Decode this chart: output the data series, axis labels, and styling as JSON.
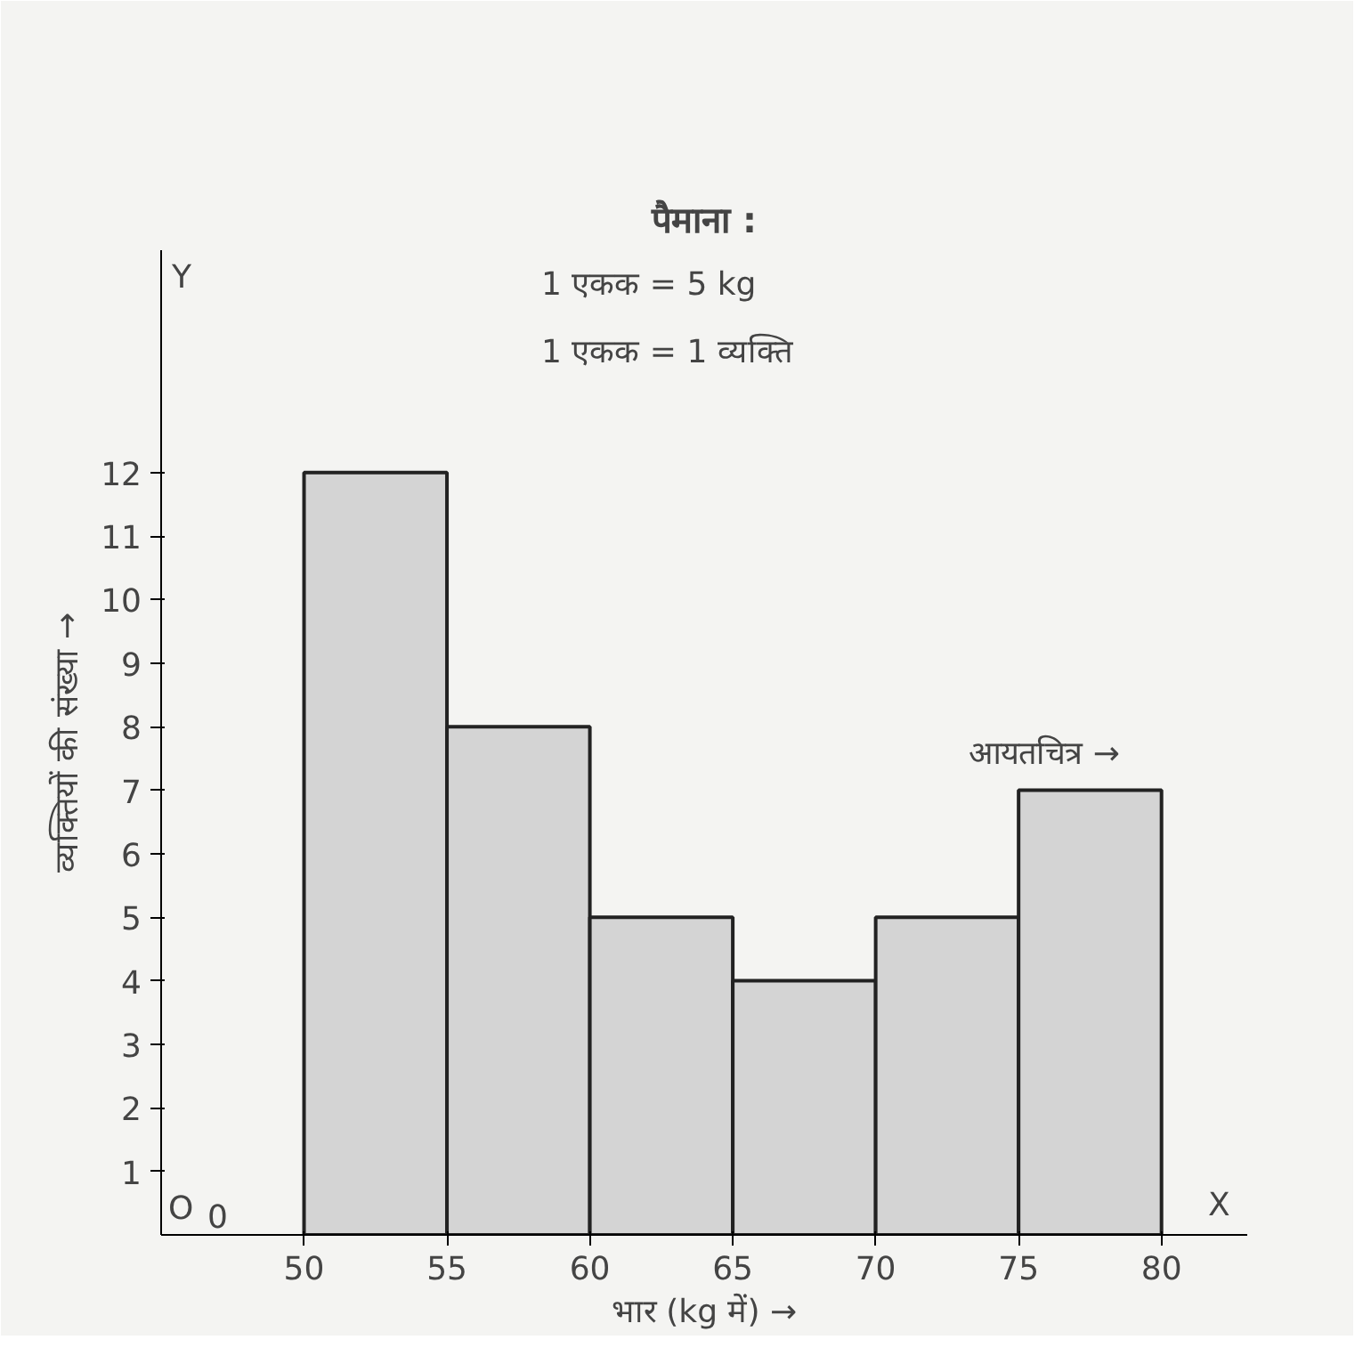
{
  "chart_data": {
    "type": "histogram",
    "title": "पैमाना :",
    "xlabel": "भार (kg में) →",
    "ylabel": "व्यक्तियों की संख्या →",
    "bins": [
      50,
      55,
      60,
      65,
      70,
      75,
      80
    ],
    "values": [
      12,
      8,
      5,
      4,
      5,
      7
    ],
    "color": "#d4d4d4",
    "xlim": [
      45,
      83
    ],
    "xticks": [
      50,
      55,
      60,
      65,
      70,
      75,
      80
    ],
    "ylim": [
      0,
      15.5
    ],
    "yticks": [
      1,
      2,
      3,
      4,
      5,
      6,
      7,
      8,
      9,
      10,
      11,
      12
    ],
    "grid": false,
    "annotations": [
      "1 एकक = 5 kg",
      "1 एकक = 1 व्यक्ति",
      {
        "text": "आयतचित्र →",
        "x": 77,
        "y": 7
      },
      "O",
      "X",
      "Y",
      "0"
    ]
  }
}
